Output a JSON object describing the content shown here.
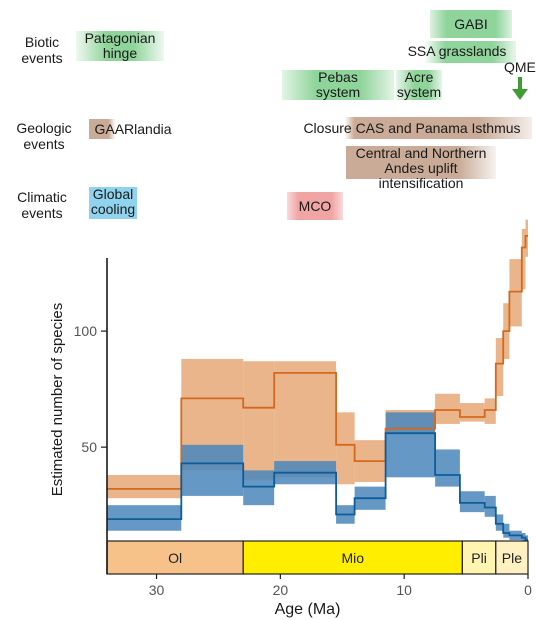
{
  "row_labels": {
    "biotic": "Biotic\nevents",
    "geologic": "Geologic\nevents",
    "climatic": "Climatic\nevents"
  },
  "events": {
    "patagonian_hinge": "Patagonian\nhinge",
    "gabi": "GABI",
    "ssa_grasslands": "SSA grasslands",
    "pebas": "Pebas\nsystem",
    "acre": "Acre\nsystem",
    "qme": "QME",
    "gaarlandia": "GAARlandia",
    "closure": "Closure CAS and Panama Isthmus",
    "andes": "Central and Northern\nAndes uplift intensification",
    "global_cooling": "Global\ncooling",
    "mco": "MCO"
  },
  "colors": {
    "biotic": "#8fd49a",
    "geologic": "#c9ab97",
    "climatic_cool": "#8fd3ee",
    "climatic_warm": "#f1a4a4",
    "orange_line": "#d2691e",
    "orange_band": "#e8a877",
    "blue_line": "#0e5d9a",
    "blue_band": "#4a86bb",
    "arrow": "#3f9c35",
    "epoch_ol": "#f7c28a",
    "epoch_mio": "#ffee00",
    "epoch_pli": "#fff5b0",
    "epoch_ple": "#fff1c2"
  },
  "chart_data": {
    "type": "line",
    "xlabel": "Age (Ma)",
    "ylabel": "Estimated number of species",
    "xlim": [
      34,
      0
    ],
    "ylim": [
      10,
      150
    ],
    "x_ticks": [
      30,
      20,
      10,
      0
    ],
    "y_ticks": [
      50,
      100
    ],
    "grid": false,
    "epochs": [
      {
        "label": "Ol",
        "start": 34,
        "end": 23
      },
      {
        "label": "Mio",
        "start": 23,
        "end": 5.3
      },
      {
        "label": "Pli",
        "start": 5.3,
        "end": 2.6
      },
      {
        "label": "Ple",
        "start": 2.6,
        "end": 0
      }
    ],
    "series": [
      {
        "color": "orange",
        "steps": [
          {
            "start": 34,
            "end": 28,
            "value": 32,
            "low": 28,
            "high": 38
          },
          {
            "start": 28,
            "end": 23,
            "value": 71,
            "low": 40,
            "high": 88
          },
          {
            "start": 23,
            "end": 20.5,
            "value": 67,
            "low": 36,
            "high": 87
          },
          {
            "start": 20.5,
            "end": 15.5,
            "value": 82,
            "low": 37,
            "high": 87
          },
          {
            "start": 15.5,
            "end": 14,
            "value": 51,
            "low": 34,
            "high": 65
          },
          {
            "start": 14,
            "end": 11.5,
            "value": 44,
            "low": 35,
            "high": 53
          },
          {
            "start": 11.5,
            "end": 7.5,
            "value": 58,
            "low": 56,
            "high": 66
          },
          {
            "start": 7.5,
            "end": 5.5,
            "value": 66,
            "low": 60,
            "high": 73
          },
          {
            "start": 5.5,
            "end": 3.5,
            "value": 63,
            "low": 61,
            "high": 69
          },
          {
            "start": 3.5,
            "end": 2.6,
            "value": 66,
            "low": 60,
            "high": 71
          },
          {
            "start": 2.6,
            "end": 2.0,
            "value": 86,
            "low": 72,
            "high": 97
          },
          {
            "start": 2.0,
            "end": 1.5,
            "value": 100,
            "low": 88,
            "high": 112
          },
          {
            "start": 1.5,
            "end": 0.5,
            "value": 117,
            "low": 102,
            "high": 131
          },
          {
            "start": 0.5,
            "end": 0.2,
            "value": 136,
            "low": 118,
            "high": 144
          },
          {
            "start": 0.2,
            "end": 0,
            "value": 141,
            "low": 132,
            "high": 148
          }
        ]
      },
      {
        "color": "blue",
        "steps": [
          {
            "start": 34,
            "end": 28,
            "value": 19,
            "low": 14,
            "high": 25
          },
          {
            "start": 28,
            "end": 23,
            "value": 43,
            "low": 29,
            "high": 51
          },
          {
            "start": 23,
            "end": 20.5,
            "value": 33,
            "low": 25,
            "high": 40
          },
          {
            "start": 20.5,
            "end": 15.5,
            "value": 39,
            "low": 34,
            "high": 44
          },
          {
            "start": 15.5,
            "end": 14,
            "value": 21,
            "low": 17,
            "high": 25
          },
          {
            "start": 14,
            "end": 11.5,
            "value": 28,
            "low": 23,
            "high": 33
          },
          {
            "start": 11.5,
            "end": 7.5,
            "value": 56,
            "low": 37,
            "high": 65
          },
          {
            "start": 7.5,
            "end": 5.5,
            "value": 38,
            "low": 33,
            "high": 49
          },
          {
            "start": 5.5,
            "end": 3.5,
            "value": 26,
            "low": 22,
            "high": 31
          },
          {
            "start": 3.5,
            "end": 2.6,
            "value": 24,
            "low": 20,
            "high": 29
          },
          {
            "start": 2.6,
            "end": 2.0,
            "value": 17,
            "low": 14,
            "high": 21
          },
          {
            "start": 2.0,
            "end": 1.5,
            "value": 13,
            "low": 11,
            "high": 17
          },
          {
            "start": 1.5,
            "end": 0.5,
            "value": 12,
            "low": 10,
            "high": 14
          },
          {
            "start": 0.5,
            "end": 0.2,
            "value": 11,
            "low": 9,
            "high": 13
          },
          {
            "start": 0.2,
            "end": 0,
            "value": 10,
            "low": 8,
            "high": 12
          }
        ]
      }
    ]
  }
}
